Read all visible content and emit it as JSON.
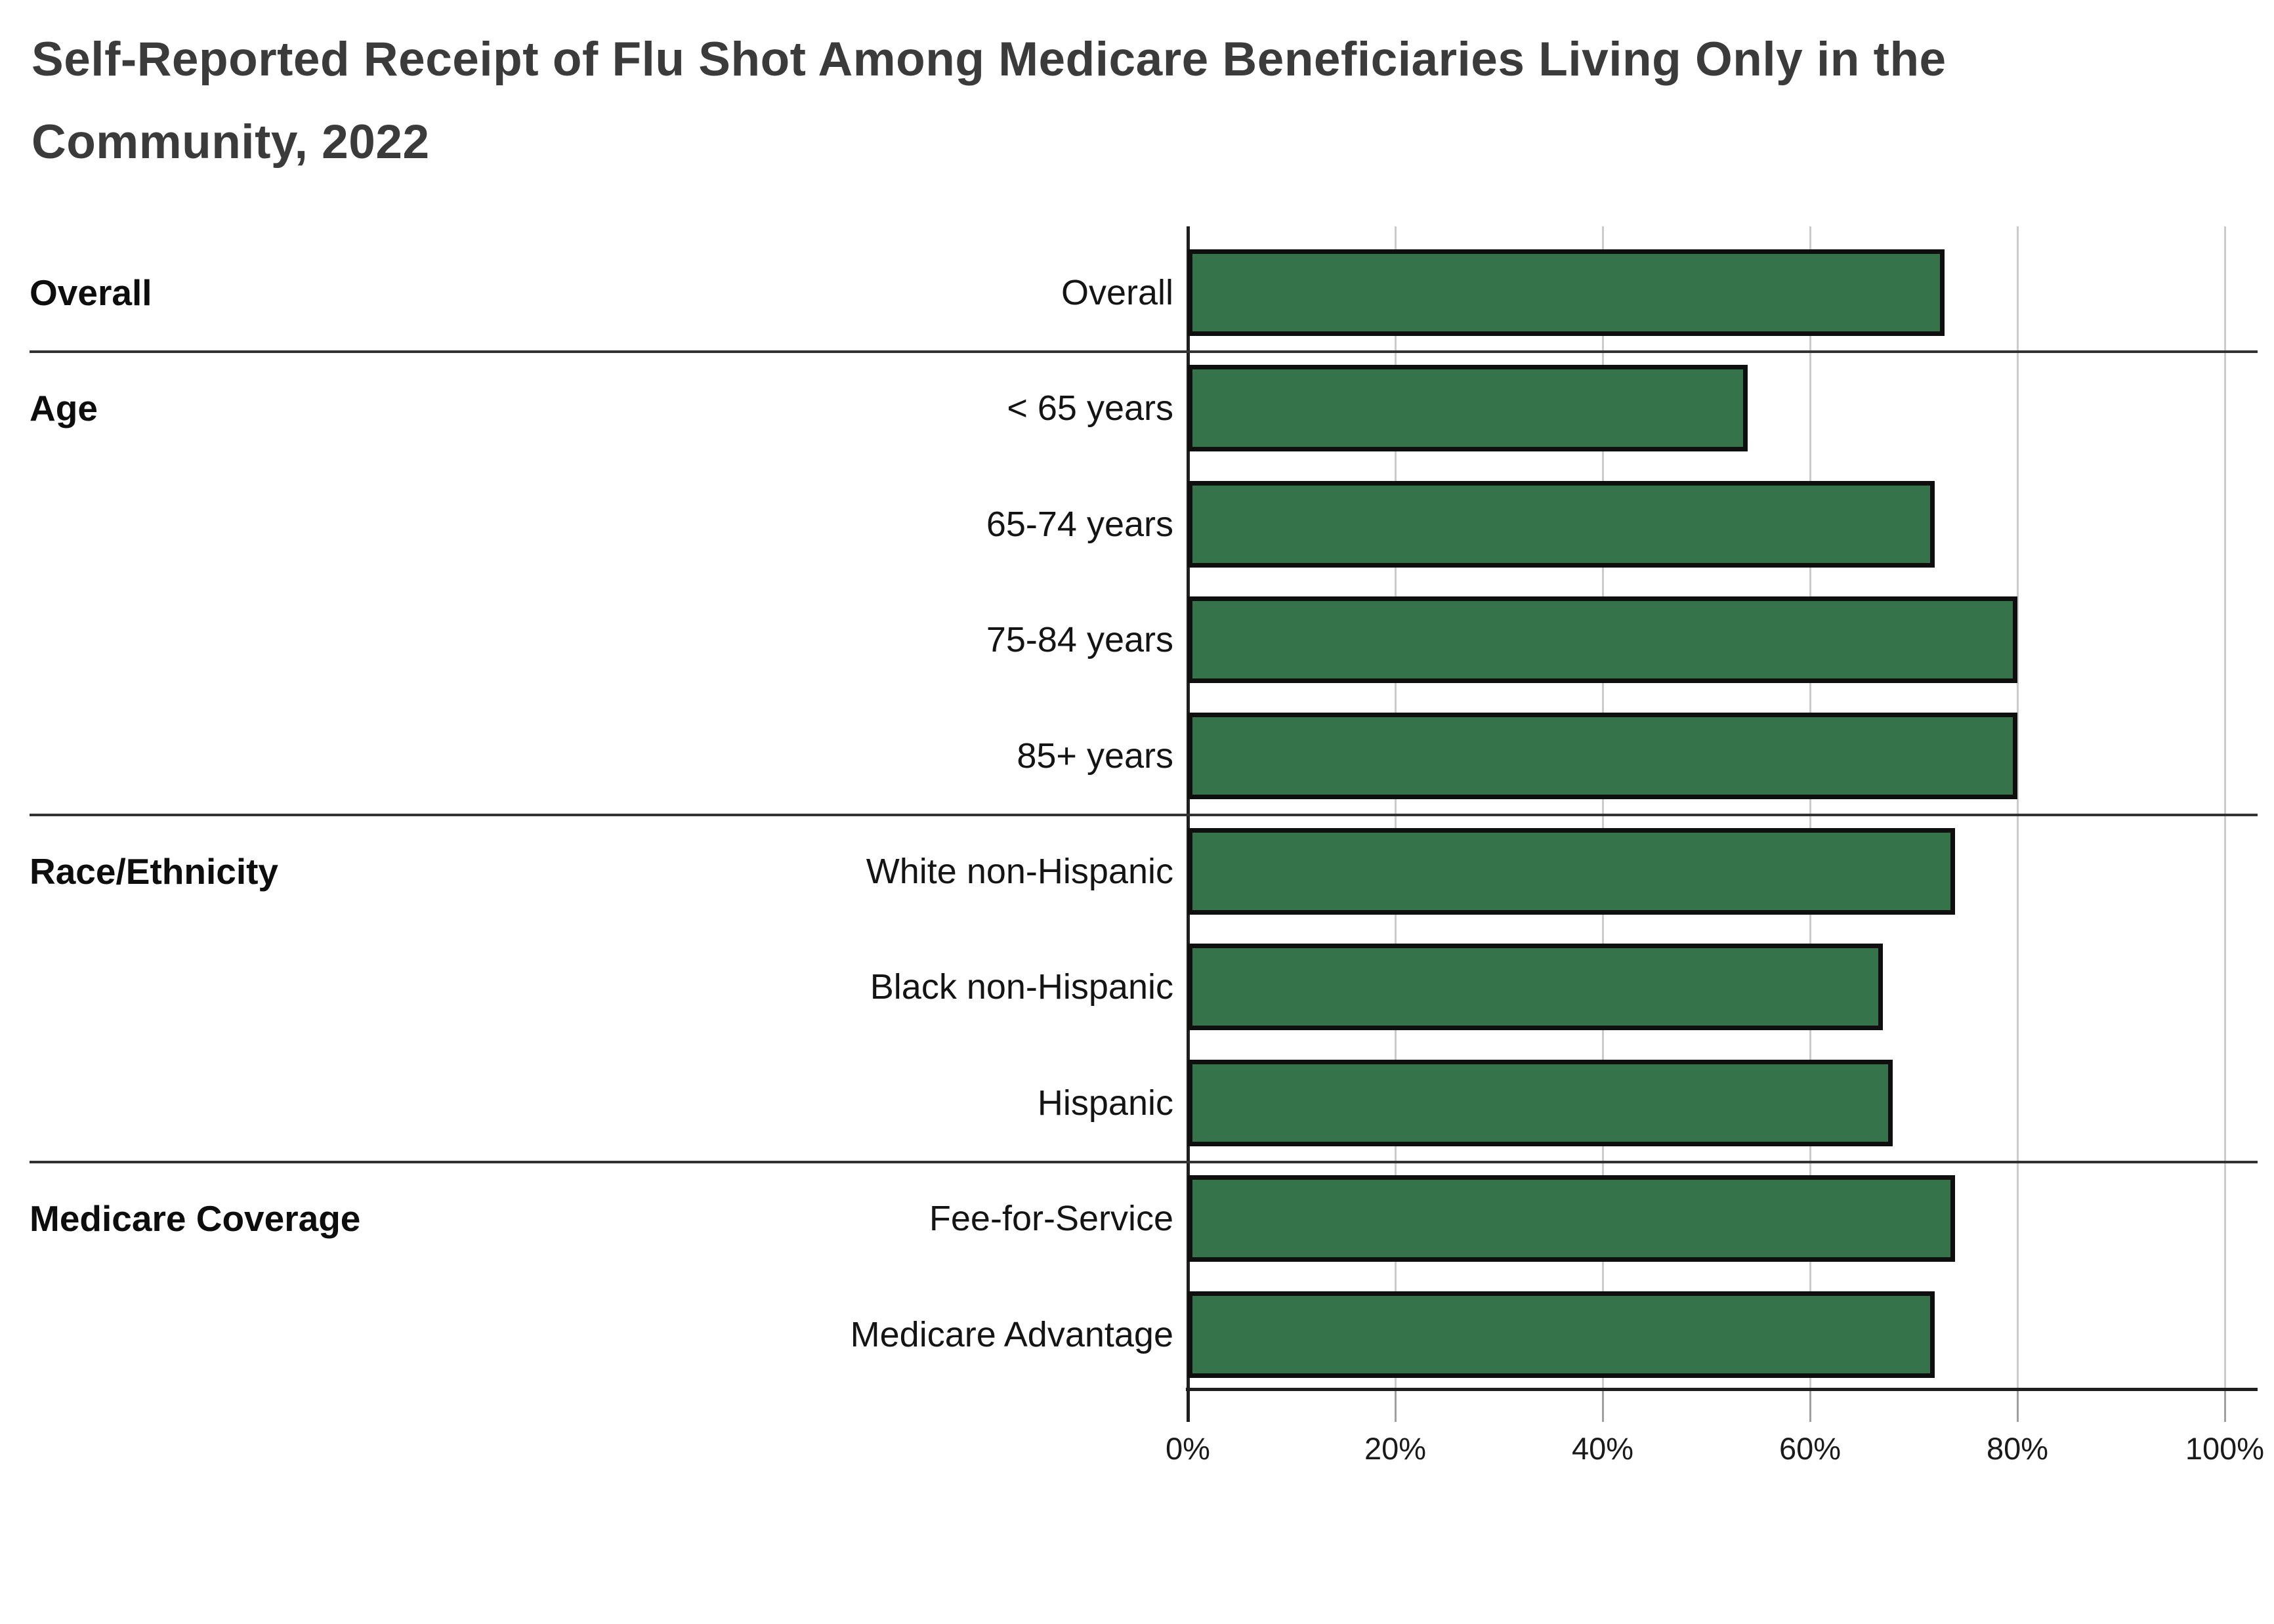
{
  "title": "Self-Reported Receipt of Flu Shot Among Medicare Beneficiaries Living Only in the Community, 2022",
  "chart_data": {
    "type": "bar",
    "orientation": "horizontal",
    "title": "Self-Reported Receipt of Flu Shot Among Medicare Beneficiaries Living Only in the Community, 2022",
    "xlabel": "",
    "ylabel": "",
    "unit": "percent",
    "xlim": [
      0,
      100
    ],
    "x_ticks": [
      {
        "value": 0,
        "label": "0%"
      },
      {
        "value": 20,
        "label": "20%"
      },
      {
        "value": 40,
        "label": "40%"
      },
      {
        "value": 60,
        "label": "60%"
      },
      {
        "value": 80,
        "label": "80%"
      },
      {
        "value": 100,
        "label": "100%"
      }
    ],
    "grid": true,
    "legend": "none",
    "sections": [
      {
        "label": "Overall",
        "rows": [
          {
            "label": "Overall",
            "value": 73
          }
        ]
      },
      {
        "label": "Age",
        "rows": [
          {
            "label": "< 65 years",
            "value": 54
          },
          {
            "label": "65-74 years",
            "value": 72
          },
          {
            "label": "75-84 years",
            "value": 80
          },
          {
            "label": "85+ years",
            "value": 80
          }
        ]
      },
      {
        "label": "Race/Ethnicity",
        "rows": [
          {
            "label": "White non-Hispanic",
            "value": 74
          },
          {
            "label": "Black non-Hispanic",
            "value": 67
          },
          {
            "label": "Hispanic",
            "value": 68
          }
        ]
      },
      {
        "label": "Medicare Coverage",
        "rows": [
          {
            "label": "Fee-for-Service",
            "value": 74
          },
          {
            "label": "Medicare Advantage",
            "value": 72
          }
        ]
      }
    ],
    "colors": {
      "bar_fill": "#35744B",
      "bar_border": "#0f0f0f",
      "gridline": "#cbcbcb",
      "axis": "#1f1f1f",
      "separator": "#323232",
      "title_text": "#3b3b3b",
      "label_text": "#141414",
      "background": "#ffffff"
    }
  }
}
